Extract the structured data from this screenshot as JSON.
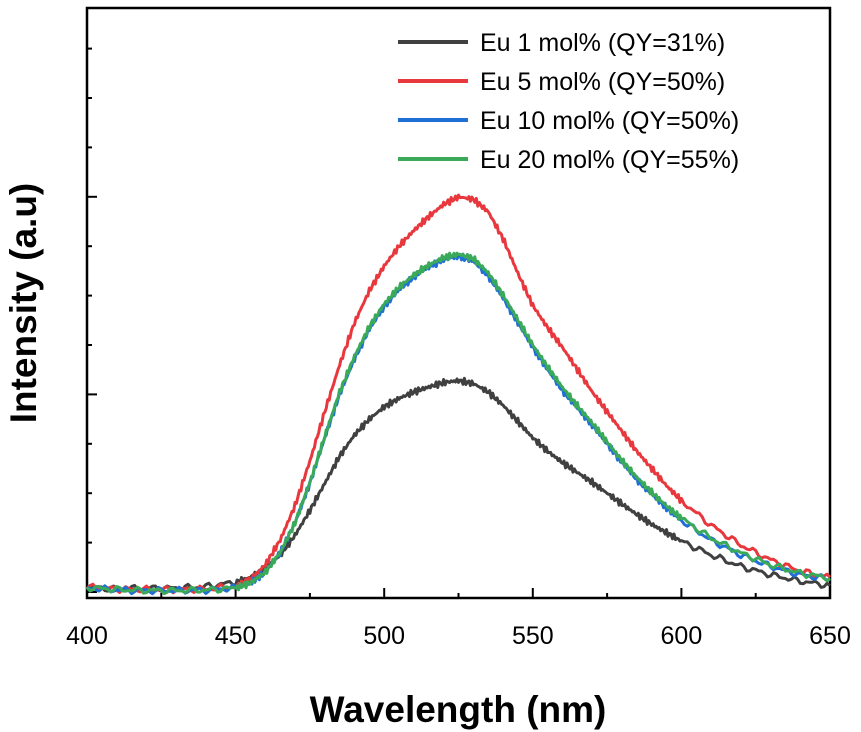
{
  "chart_data": {
    "type": "line",
    "title": "",
    "xlabel": "Wavelength (nm)",
    "ylabel": "Intensity (a.u)",
    "xlim": [
      400,
      650
    ],
    "ylim": [
      0,
      1
    ],
    "x_ticks": [
      400,
      450,
      500,
      550,
      600,
      650
    ],
    "x_tick_labels": [
      "400",
      "450",
      "500",
      "550",
      "600",
      "650"
    ],
    "y_tick_labels_shown": false,
    "grid": false,
    "legend_position": "top-right",
    "x": [
      400,
      410,
      420,
      430,
      440,
      450,
      455,
      460,
      465,
      470,
      475,
      480,
      485,
      490,
      495,
      500,
      505,
      510,
      515,
      520,
      525,
      530,
      535,
      540,
      545,
      550,
      555,
      560,
      565,
      570,
      575,
      580,
      585,
      590,
      595,
      600,
      610,
      620,
      630,
      640,
      650
    ],
    "series": [
      {
        "name": "Eu 1 mol% (QY=31%)",
        "color": "#404040",
        "values": [
          0.01,
          0.006,
          0.008,
          0.008,
          0.011,
          0.02,
          0.03,
          0.048,
          0.075,
          0.115,
          0.165,
          0.22,
          0.275,
          0.318,
          0.35,
          0.375,
          0.392,
          0.405,
          0.415,
          0.424,
          0.428,
          0.422,
          0.405,
          0.378,
          0.345,
          0.312,
          0.285,
          0.262,
          0.242,
          0.222,
          0.2,
          0.178,
          0.157,
          0.137,
          0.12,
          0.103,
          0.075,
          0.052,
          0.035,
          0.022,
          0.013
        ]
      },
      {
        "name": "Eu 5 mol% (QY=50%)",
        "color": "#e8383d",
        "values": [
          0.01,
          0.006,
          0.005,
          0.005,
          0.006,
          0.012,
          0.025,
          0.055,
          0.105,
          0.175,
          0.265,
          0.365,
          0.46,
          0.545,
          0.61,
          0.66,
          0.7,
          0.732,
          0.76,
          0.785,
          0.8,
          0.795,
          0.77,
          0.715,
          0.645,
          0.58,
          0.535,
          0.495,
          0.45,
          0.405,
          0.365,
          0.325,
          0.285,
          0.25,
          0.215,
          0.185,
          0.135,
          0.095,
          0.065,
          0.042,
          0.03
        ]
      },
      {
        "name": "Eu 10 mol% (QY=50%)",
        "color": "#1f6fd6",
        "values": [
          0.008,
          0.004,
          0.003,
          0.003,
          0.004,
          0.008,
          0.018,
          0.04,
          0.08,
          0.14,
          0.22,
          0.312,
          0.4,
          0.472,
          0.532,
          0.578,
          0.612,
          0.638,
          0.658,
          0.673,
          0.68,
          0.67,
          0.64,
          0.595,
          0.545,
          0.495,
          0.45,
          0.408,
          0.372,
          0.338,
          0.3,
          0.262,
          0.228,
          0.198,
          0.17,
          0.145,
          0.105,
          0.075,
          0.052,
          0.035,
          0.026
        ]
      },
      {
        "name": "Eu 20 mol% (QY=55%)",
        "color": "#3aaa5a",
        "values": [
          0.009,
          0.005,
          0.003,
          0.003,
          0.004,
          0.008,
          0.018,
          0.04,
          0.08,
          0.14,
          0.222,
          0.315,
          0.405,
          0.477,
          0.537,
          0.583,
          0.617,
          0.642,
          0.662,
          0.677,
          0.684,
          0.675,
          0.646,
          0.601,
          0.551,
          0.5,
          0.455,
          0.414,
          0.377,
          0.342,
          0.304,
          0.266,
          0.232,
          0.202,
          0.174,
          0.149,
          0.109,
          0.079,
          0.055,
          0.038,
          0.028
        ]
      }
    ]
  }
}
